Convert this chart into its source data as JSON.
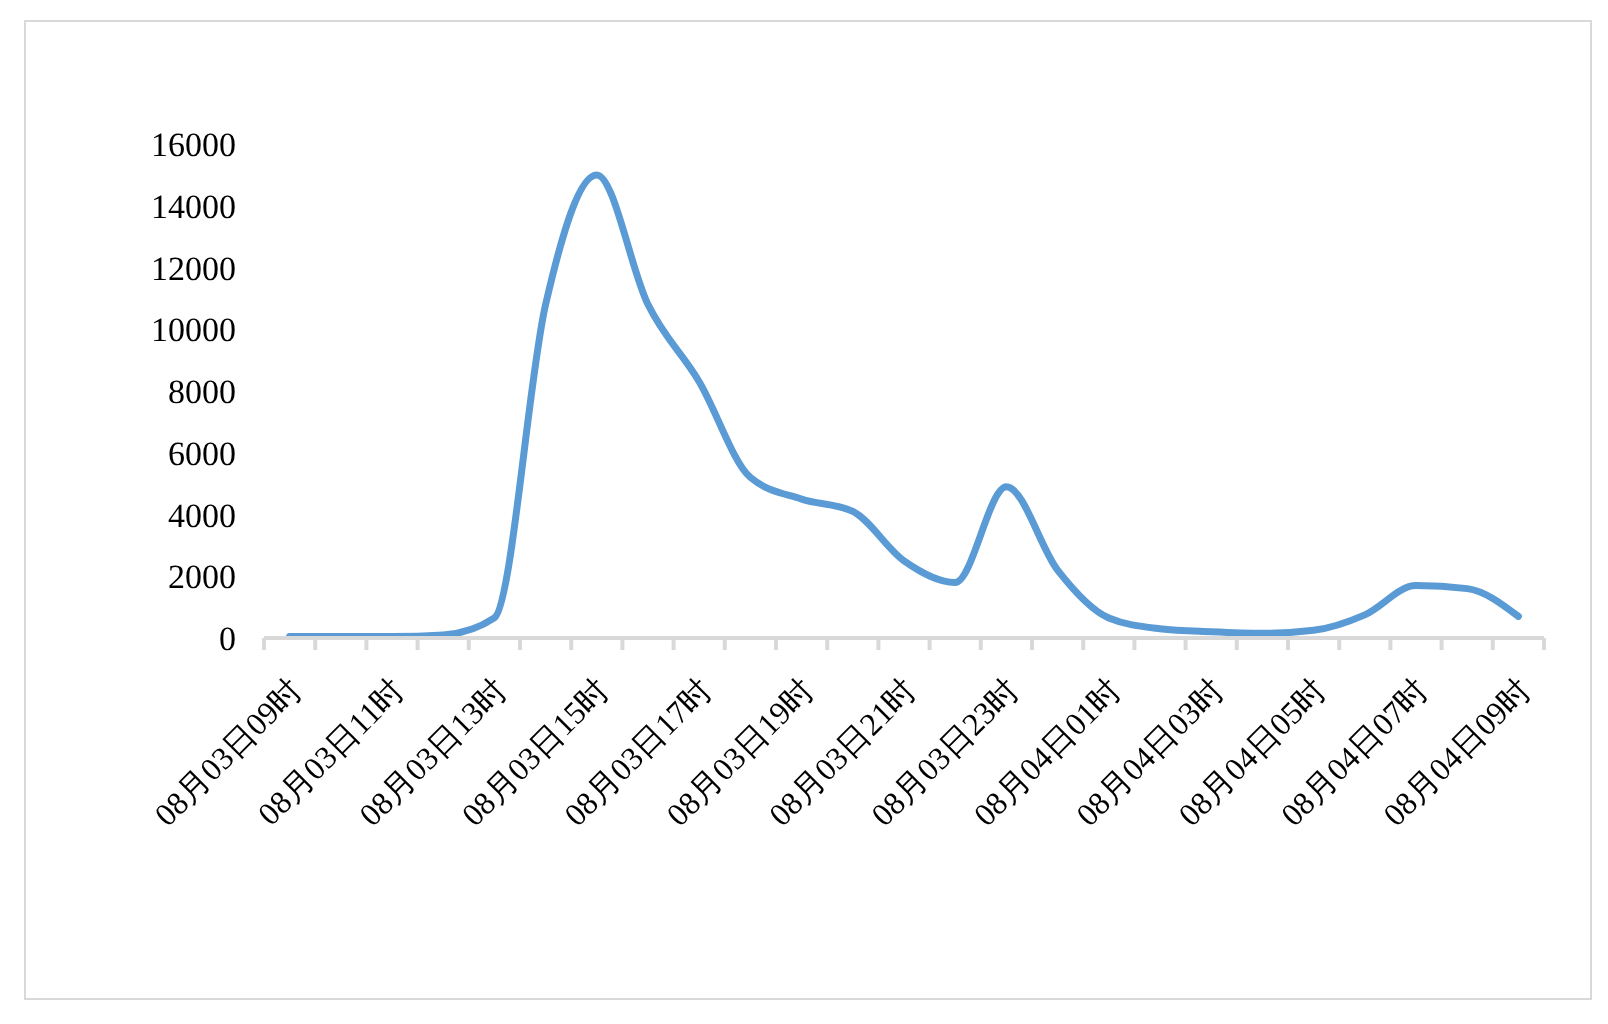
{
  "chart_data": {
    "type": "line",
    "categories": [
      "08月03日09时",
      null,
      "08月03日11时",
      null,
      "08月03日13时",
      null,
      "08月03日15时",
      null,
      "08月03日17时",
      null,
      "08月03日19时",
      null,
      "08月03日21时",
      null,
      "08月03日23时",
      null,
      "08月04日01时",
      null,
      "08月04日03时",
      null,
      "08月04日05时",
      null,
      "08月04日07时",
      null,
      "08月04日09时"
    ],
    "series": [
      {
        "color": "#5b9bd5",
        "values": [
          50,
          50,
          50,
          100,
          650,
          10800,
          15000,
          10800,
          8300,
          5200,
          4500,
          4100,
          2500,
          1800,
          4900,
          2200,
          650,
          300,
          200,
          150,
          250,
          750,
          1700,
          1600,
          700
        ]
      }
    ],
    "ylim": [
      0,
      16000
    ],
    "yticks": [
      0,
      2000,
      4000,
      6000,
      8000,
      10000,
      12000,
      14000,
      16000
    ],
    "marker": "none"
  }
}
